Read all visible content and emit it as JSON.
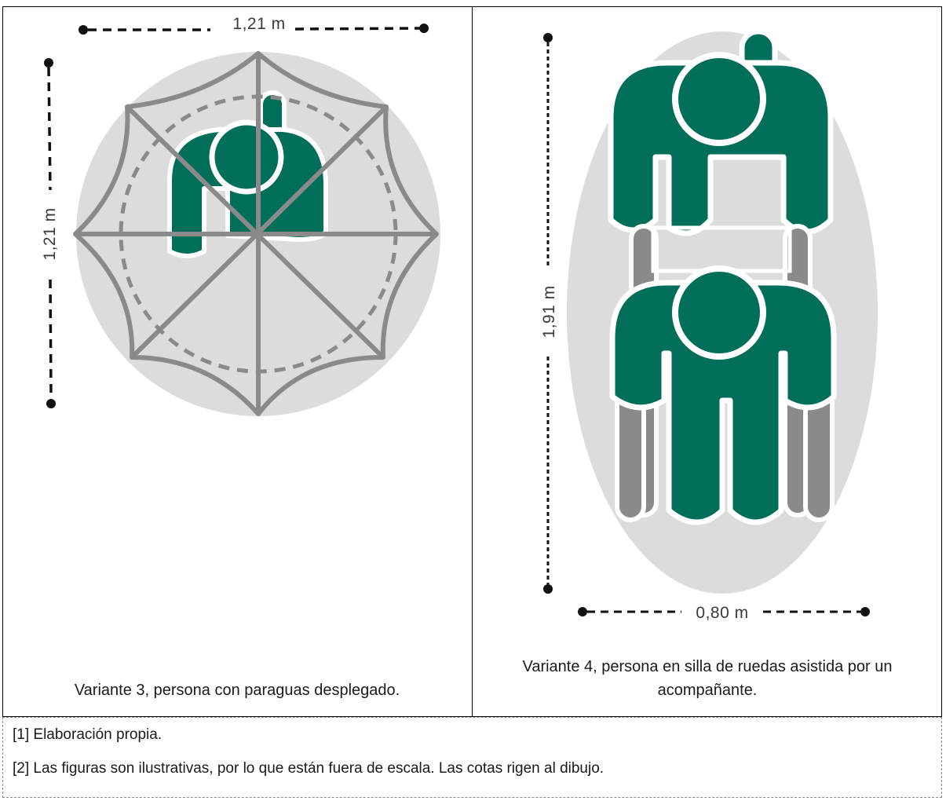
{
  "variant3": {
    "caption": "Variante 3, persona con paraguas desplegado.",
    "dim_horizontal": "1,21 m",
    "dim_vertical": "1,21 m"
  },
  "variant4": {
    "caption": "Variante 4, persona en silla de ruedas asistida por un acompañante.",
    "dim_horizontal": "0,80 m",
    "dim_vertical": "1,91 m"
  },
  "notes": [
    "[1] Elaboración propia.",
    "[2] Las figuras son ilustrativas, por lo que están fuera de escala. Las cotas rigen al dibujo."
  ],
  "colors": {
    "figure_green": "#006e58",
    "figure_outline": "#ffffff",
    "area_gray": "#dcdcdc",
    "umbrella_gray": "#8a8a8a",
    "dimension_black": "#111111"
  },
  "icons": [
    "person-top-view",
    "umbrella-top-view",
    "wheelchair-top-view",
    "companion-person-top-view"
  ]
}
